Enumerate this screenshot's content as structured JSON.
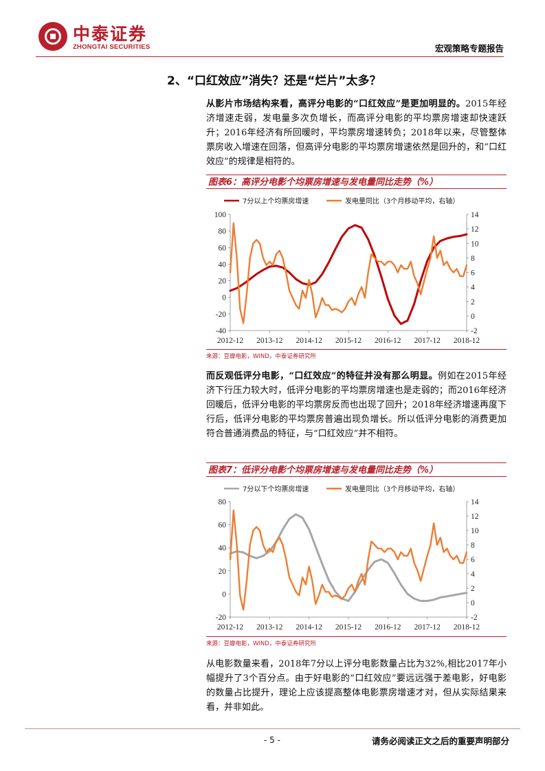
{
  "header": {
    "logo_cn": "中泰证券",
    "logo_en": "ZHONGTAI SECURITIES",
    "report_type": "宏观策略专题报告"
  },
  "section_title": "2、“口红效应”消失？还是“烂片”太多？",
  "para1": {
    "lead": "从影片市场结构来看，高评分电影的“口红效应”是更加明显的。",
    "body": "2015年经济增速走弱，发电量多次负增长，而高评分电影的平均票房增速却快速跃升；2016年经济有所回暖时，平均票房增速转负；2018年以来，尽管整体票房收入增速在回落，但高评分电影的平均票房增速依然是回升的，和“口红效应”的规律是相符的。"
  },
  "figure6": {
    "title": "图表6：高评分电影个均票房增速与发电量同比走势（%）",
    "source": "来源：豆瓣电影，WIND，中泰证券研究所"
  },
  "para2": {
    "lead": "而反观低评分电影，“口红效应”的特征并没有那么明显。",
    "body": "例如在2015年经济下行压力较大时，低评分电影的平均票房增速也是走弱的；而2016年经济回暖后，低评分电影的平均票房反而也出现了回升；2018年经济增速再度下行后，低评分电影的平均票房普遍出现负增长。所以低评分电影的消费更加符合普通消费品的特征，与“口红效应”并不相符。"
  },
  "figure7": {
    "title": "图表7：低评分电影个均票房增速与发电量同比走势（%）",
    "source": "来源：豆瓣电影，WIND，中泰证券研究所"
  },
  "para3": {
    "body": "从电影数量来看，2018年7分以上评分电影数量占比为32%,相比2017年小幅提升了3个百分点。由于好电影的“口红效应”要远远强于差电影，好电影的数量占比提升，理论上应该提高整体电影票房增速才对，但从实际结果来看，并非如此。"
  },
  "footer": {
    "page": "- 5 -",
    "notice": "请务必阅读正文之后的重要声明部分"
  },
  "colors": {
    "brand_red": "#b8202b",
    "series_high": "#c00000",
    "series_low": "#a6a6a6",
    "series_power": "#ed7d31"
  },
  "chart_data": [
    {
      "type": "line",
      "x_ticks": [
        "2012-12",
        "2013-12",
        "2014-12",
        "2015-12",
        "2016-12",
        "2017-12",
        "2018-12"
      ],
      "x_range": [
        "2012-12",
        "2018-12"
      ],
      "ylim_left": [
        -40,
        100
      ],
      "yticks_left": [
        -40,
        -20,
        0,
        20,
        40,
        60,
        80,
        100
      ],
      "ylim_right": [
        -2,
        14
      ],
      "yticks_right": [
        -2,
        0,
        2,
        4,
        6,
        8,
        10,
        12,
        14
      ],
      "legend_placement": "top",
      "grid": false,
      "series": [
        {
          "name": "7分以上个均票房增速",
          "axis": "left",
          "x": [
            "2012-12",
            "2013-02",
            "2013-04",
            "2013-06",
            "2013-08",
            "2013-10",
            "2013-12",
            "2014-02",
            "2014-04",
            "2014-06",
            "2014-08",
            "2014-10",
            "2014-12",
            "2015-02",
            "2015-04",
            "2015-06",
            "2015-08",
            "2015-10",
            "2015-12",
            "2016-02",
            "2016-04",
            "2016-06",
            "2016-08",
            "2016-10",
            "2016-12",
            "2017-02",
            "2017-04",
            "2017-06",
            "2017-08",
            "2017-10",
            "2017-12",
            "2018-02",
            "2018-04",
            "2018-06",
            "2018-08",
            "2018-10",
            "2018-12"
          ],
          "values": [
            8,
            11,
            16,
            22,
            28,
            33,
            37,
            38,
            36,
            30,
            22,
            17,
            15,
            18,
            28,
            42,
            58,
            73,
            83,
            87,
            84,
            70,
            50,
            25,
            -2,
            -22,
            -32,
            -28,
            -8,
            20,
            44,
            60,
            68,
            71,
            73,
            74,
            76
          ]
        },
        {
          "name": "发电量同比（3个月移动平均，右轴）",
          "axis": "right",
          "x": [
            "2012-12",
            "2013-01",
            "2013-02",
            "2013-03",
            "2013-04",
            "2013-05",
            "2013-06",
            "2013-07",
            "2013-08",
            "2013-09",
            "2013-10",
            "2013-11",
            "2013-12",
            "2014-01",
            "2014-02",
            "2014-03",
            "2014-04",
            "2014-05",
            "2014-06",
            "2014-07",
            "2014-08",
            "2014-09",
            "2014-10",
            "2014-11",
            "2014-12",
            "2015-01",
            "2015-02",
            "2015-03",
            "2015-04",
            "2015-05",
            "2015-06",
            "2015-07",
            "2015-08",
            "2015-09",
            "2015-10",
            "2015-11",
            "2015-12",
            "2016-01",
            "2016-02",
            "2016-03",
            "2016-04",
            "2016-05",
            "2016-06",
            "2016-07",
            "2016-08",
            "2016-09",
            "2016-10",
            "2016-11",
            "2016-12",
            "2017-01",
            "2017-02",
            "2017-03",
            "2017-04",
            "2017-05",
            "2017-06",
            "2017-07",
            "2017-08",
            "2017-09",
            "2017-10",
            "2017-12",
            "2018-01",
            "2018-02",
            "2018-03",
            "2018-04",
            "2018-05",
            "2018-06",
            "2018-07",
            "2018-08",
            "2018-09",
            "2018-10",
            "2018-11",
            "2018-12"
          ],
          "values": [
            6,
            12.8,
            8,
            1,
            -1,
            3,
            8,
            10,
            10.5,
            10,
            8,
            7,
            7.5,
            7,
            8.5,
            9,
            8,
            6,
            3.5,
            2.5,
            1.5,
            1,
            3.5,
            2.5,
            5,
            3,
            -0.2,
            1,
            2.5,
            1.5,
            1.5,
            0.8,
            1,
            0.8,
            0.5,
            1,
            2,
            2.5,
            1.5,
            3,
            4,
            2.5,
            6,
            8.5,
            8,
            7.5,
            7.5,
            7,
            7.5,
            7.5,
            7,
            6,
            7,
            6.5,
            6.5,
            7.5,
            5.5,
            4.5,
            3,
            6.5,
            8,
            11,
            8,
            9,
            7,
            7.5,
            6.5,
            6,
            6.5,
            5.5,
            5.5,
            7
          ]
        }
      ]
    },
    {
      "type": "line",
      "x_ticks": [
        "2012-12",
        "2013-12",
        "2014-12",
        "2015-12",
        "2016-12",
        "2017-12",
        "2018-12"
      ],
      "x_range": [
        "2012-12",
        "2018-12"
      ],
      "ylim_left": [
        -20,
        80
      ],
      "yticks_left": [
        -20,
        0,
        20,
        40,
        60,
        80
      ],
      "ylim_right": [
        -2,
        14
      ],
      "yticks_right": [
        -2,
        0,
        2,
        4,
        6,
        8,
        10,
        12,
        14
      ],
      "legend_placement": "top",
      "grid": false,
      "series": [
        {
          "name": "7分以下个均票房增速",
          "axis": "left",
          "x": [
            "2012-12",
            "2013-02",
            "2013-04",
            "2013-06",
            "2013-08",
            "2013-10",
            "2013-12",
            "2014-02",
            "2014-04",
            "2014-06",
            "2014-08",
            "2014-10",
            "2014-12",
            "2015-02",
            "2015-04",
            "2015-06",
            "2015-08",
            "2015-10",
            "2015-12",
            "2016-02",
            "2016-04",
            "2016-06",
            "2016-08",
            "2016-10",
            "2016-12",
            "2017-02",
            "2017-04",
            "2017-06",
            "2017-08",
            "2017-10",
            "2017-12",
            "2018-02",
            "2018-04",
            "2018-06",
            "2018-08",
            "2018-10",
            "2018-12"
          ],
          "values": [
            35,
            37,
            36,
            33,
            31,
            33,
            37,
            45,
            56,
            65,
            69,
            66,
            56,
            41,
            26,
            12,
            2,
            -4,
            -6,
            2,
            12,
            21,
            28,
            30,
            27,
            18,
            8,
            0,
            -4,
            -6,
            -6,
            -5,
            -3,
            -2,
            -1,
            0,
            1
          ]
        },
        {
          "name": "发电量同比（3个月移动平均，右轴）",
          "axis": "right",
          "x": [
            "2012-12",
            "2013-01",
            "2013-02",
            "2013-03",
            "2013-04",
            "2013-05",
            "2013-06",
            "2013-07",
            "2013-08",
            "2013-09",
            "2013-10",
            "2013-11",
            "2013-12",
            "2014-01",
            "2014-02",
            "2014-03",
            "2014-04",
            "2014-05",
            "2014-06",
            "2014-07",
            "2014-08",
            "2014-09",
            "2014-10",
            "2014-11",
            "2014-12",
            "2015-01",
            "2015-02",
            "2015-03",
            "2015-04",
            "2015-05",
            "2015-06",
            "2015-07",
            "2015-08",
            "2015-09",
            "2015-10",
            "2015-11",
            "2015-12",
            "2016-01",
            "2016-02",
            "2016-03",
            "2016-04",
            "2016-05",
            "2016-06",
            "2016-07",
            "2016-08",
            "2016-09",
            "2016-10",
            "2016-11",
            "2016-12",
            "2017-01",
            "2017-02",
            "2017-03",
            "2017-04",
            "2017-05",
            "2017-06",
            "2017-07",
            "2017-08",
            "2017-09",
            "2017-10",
            "2017-12",
            "2018-01",
            "2018-02",
            "2018-03",
            "2018-04",
            "2018-05",
            "2018-06",
            "2018-07",
            "2018-08",
            "2018-09",
            "2018-10",
            "2018-11",
            "2018-12"
          ],
          "values": [
            6,
            12.8,
            8,
            1,
            -1,
            3,
            8,
            10,
            10.5,
            10,
            8,
            7,
            7.5,
            7,
            8.5,
            9,
            8,
            6,
            3.5,
            2.5,
            1.5,
            1,
            3.5,
            2.5,
            5,
            3,
            -0.2,
            1,
            2.5,
            1.5,
            1.5,
            0.8,
            1,
            0.8,
            0.5,
            1,
            2,
            2.5,
            1.5,
            3,
            4,
            2.5,
            6,
            8.5,
            8,
            7.5,
            7.5,
            7,
            7.5,
            7.5,
            7,
            6,
            7,
            6.5,
            6.5,
            7.5,
            5.5,
            4.5,
            3,
            6.5,
            8,
            11,
            8,
            9,
            7,
            7.5,
            6.5,
            6,
            6.5,
            5.5,
            5.5,
            7
          ]
        }
      ]
    }
  ]
}
